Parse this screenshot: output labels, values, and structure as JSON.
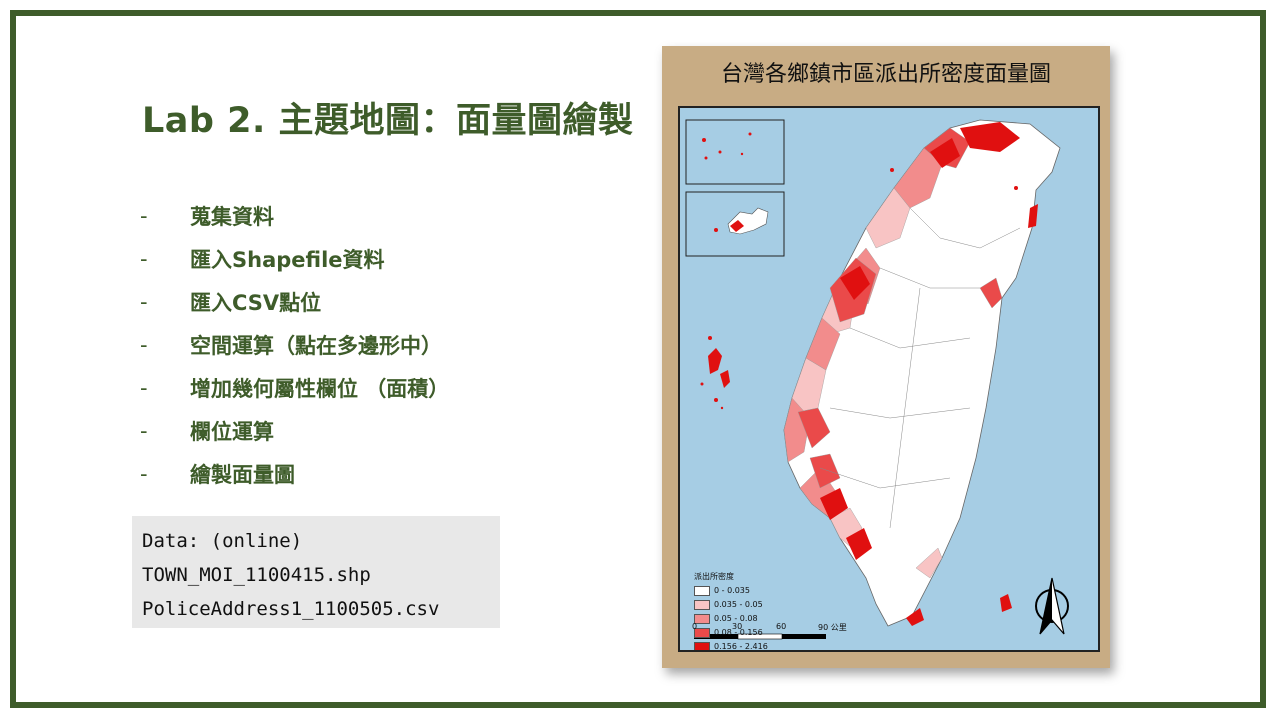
{
  "slide": {
    "title": "Lab 2. 主題地圖：面量圖繪製",
    "bullets": [
      {
        "dash": "-",
        "label": "蒐集資料"
      },
      {
        "dash": "-",
        "label": "匯入Shapefile資料"
      },
      {
        "dash": "-",
        "label": "匯入CSV點位"
      },
      {
        "dash": "-",
        "label": "空間運算（點在多邊形中）"
      },
      {
        "dash": "-",
        "label": "增加幾何屬性欄位 （面積）"
      },
      {
        "dash": "-",
        "label": "欄位運算"
      },
      {
        "dash": "-",
        "label": "繪製面量圖"
      }
    ],
    "data_box": {
      "line1": "Data: (online)",
      "line2": "TOWN_MOI_1100415.shp",
      "line3": "PoliceAddress1_1100505.csv"
    }
  },
  "map": {
    "title": "台灣各鄉鎮市區派出所密度面量圖",
    "legend": {
      "title": "派出所密度",
      "classes": [
        {
          "label": "0 - 0.035",
          "color": "#ffffff"
        },
        {
          "label": "0.035 - 0.05",
          "color": "#f8c4c4"
        },
        {
          "label": "0.05 - 0.08",
          "color": "#f28c8c"
        },
        {
          "label": "0.08 - 0.156",
          "color": "#ea4a4a"
        },
        {
          "label": "0.156 - 2.416",
          "color": "#e01010"
        }
      ]
    },
    "scale_labels": [
      "0",
      "30",
      "60",
      "90 公里"
    ],
    "north_arrow_label": "N",
    "ocean_color": "#a6cde4"
  },
  "colors": {
    "accent": "#3e5c2a",
    "card": "#c8ac84"
  }
}
